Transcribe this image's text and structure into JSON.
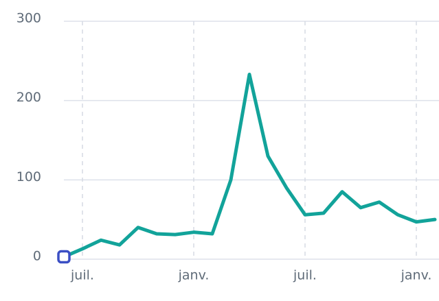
{
  "chart_data": {
    "type": "line",
    "categories": [
      null,
      "juil.",
      null,
      null,
      null,
      null,
      null,
      "janv.",
      null,
      null,
      null,
      null,
      null,
      "juil.",
      null,
      null,
      null,
      null,
      null,
      "janv.",
      null
    ],
    "values": [
      3,
      13,
      24,
      18,
      40,
      32,
      31,
      34,
      32,
      100,
      233,
      130,
      90,
      56,
      58,
      85,
      65,
      72,
      56,
      47,
      50
    ],
    "color": "#12a39a",
    "marker_color": "#3b4fc4",
    "ylim": [
      0,
      300
    ],
    "yticks": [
      0,
      100,
      200,
      300
    ],
    "grid": true
  }
}
